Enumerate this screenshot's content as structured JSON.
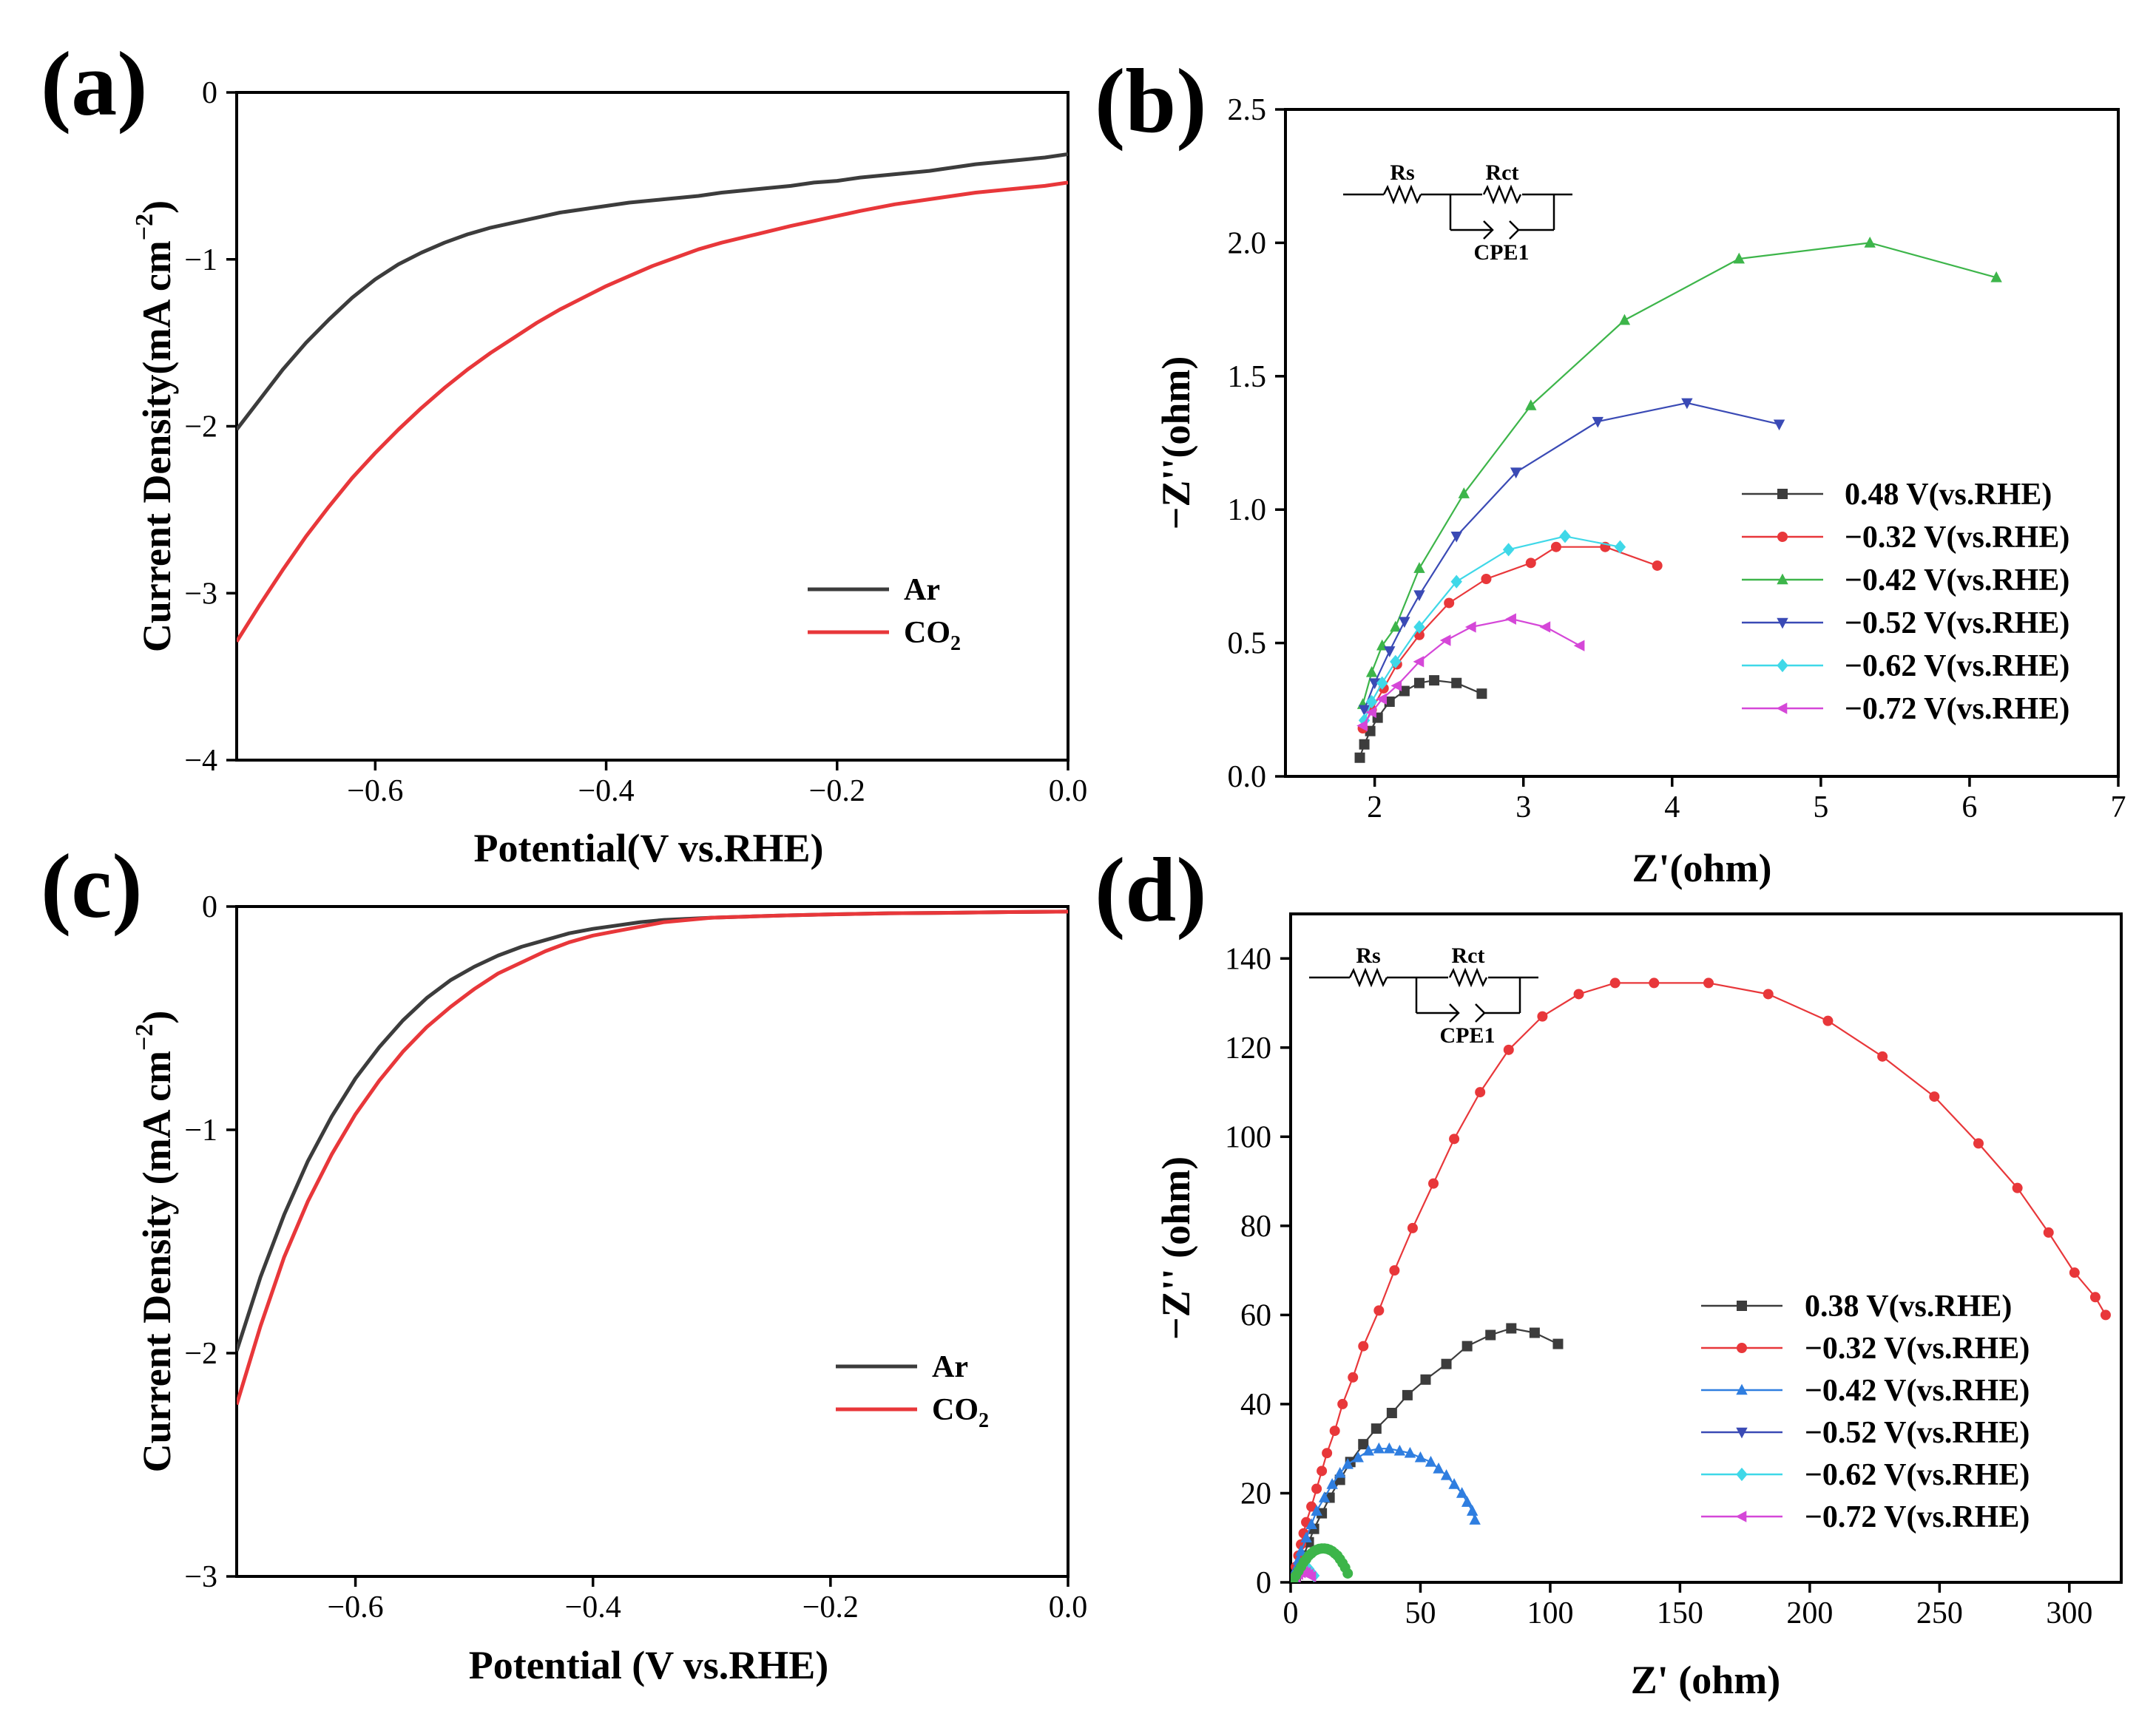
{
  "figure": {
    "panels": [
      {
        "letter": "(a)"
      },
      {
        "letter": "(b)"
      },
      {
        "letter": "(c)"
      },
      {
        "letter": "(d)"
      }
    ]
  },
  "chart_data": [
    {
      "panel": "(a)",
      "type": "line",
      "xlabel": "Potential(V vs.RHE)",
      "ylabel": "Current Density(mA cm",
      "ylabel_sup": "−2",
      "ylabel_close": ")",
      "xlim": [
        -0.72,
        0.0
      ],
      "ylim": [
        -4,
        0
      ],
      "xticks": [
        -0.6,
        -0.4,
        -0.2,
        0.0
      ],
      "xtick_labels": [
        "−0.6",
        "−0.4",
        "−0.2",
        "0.0"
      ],
      "yticks": [
        0,
        -1,
        -2,
        -3,
        -4
      ],
      "ytick_labels": [
        "0",
        "−1",
        "−2",
        "−3",
        "−4"
      ],
      "legend_position": "lower-right",
      "series": [
        {
          "name": "Ar",
          "sub": "",
          "color": "#3c3c3c",
          "marker": "none",
          "x": [
            -0.72,
            -0.7,
            -0.68,
            -0.66,
            -0.64,
            -0.62,
            -0.6,
            -0.58,
            -0.56,
            -0.54,
            -0.52,
            -0.5,
            -0.48,
            -0.46,
            -0.44,
            -0.42,
            -0.4,
            -0.38,
            -0.35,
            -0.32,
            -0.3,
            -0.27,
            -0.24,
            -0.22,
            -0.2,
            -0.18,
            -0.15,
            -0.12,
            -0.1,
            -0.08,
            -0.05,
            -0.02,
            0.0
          ],
          "y": [
            -2.02,
            -1.84,
            -1.66,
            -1.5,
            -1.36,
            -1.23,
            -1.12,
            -1.03,
            -0.96,
            -0.9,
            -0.85,
            -0.81,
            -0.78,
            -0.75,
            -0.72,
            -0.7,
            -0.68,
            -0.66,
            -0.64,
            -0.62,
            -0.6,
            -0.58,
            -0.56,
            -0.54,
            -0.53,
            -0.51,
            -0.49,
            -0.47,
            -0.45,
            -0.43,
            -0.41,
            -0.39,
            -0.37
          ]
        },
        {
          "name": "CO",
          "sub": "2",
          "color": "#e8373a",
          "marker": "none",
          "x": [
            -0.72,
            -0.7,
            -0.68,
            -0.66,
            -0.64,
            -0.62,
            -0.6,
            -0.58,
            -0.56,
            -0.54,
            -0.52,
            -0.5,
            -0.48,
            -0.46,
            -0.44,
            -0.42,
            -0.4,
            -0.38,
            -0.36,
            -0.34,
            -0.32,
            -0.3,
            -0.27,
            -0.24,
            -0.22,
            -0.2,
            -0.18,
            -0.15,
            -0.12,
            -0.1,
            -0.08,
            -0.05,
            -0.02,
            0.0
          ],
          "y": [
            -3.29,
            -3.07,
            -2.86,
            -2.66,
            -2.48,
            -2.31,
            -2.16,
            -2.02,
            -1.89,
            -1.77,
            -1.66,
            -1.56,
            -1.47,
            -1.38,
            -1.3,
            -1.23,
            -1.16,
            -1.1,
            -1.04,
            -0.99,
            -0.94,
            -0.9,
            -0.85,
            -0.8,
            -0.77,
            -0.74,
            -0.71,
            -0.67,
            -0.64,
            -0.62,
            -0.6,
            -0.58,
            -0.56,
            -0.54
          ]
        }
      ]
    },
    {
      "panel": "(b)",
      "type": "line",
      "xlabel": "Z'(ohm)",
      "ylabel": "−Z''(ohm)",
      "xlim": [
        1.4,
        7
      ],
      "ylim": [
        0,
        2.5
      ],
      "xticks": [
        2,
        3,
        4,
        5,
        6,
        7
      ],
      "xtick_labels": [
        "2",
        "3",
        "4",
        "5",
        "6",
        "7"
      ],
      "yticks": [
        0.0,
        0.5,
        1.0,
        1.5,
        2.0,
        2.5
      ],
      "ytick_labels": [
        "0.0",
        "0.5",
        "1.0",
        "1.5",
        "2.0",
        "2.5"
      ],
      "legend_position": "lower-right",
      "circuit": {
        "rs": "Rs",
        "rct": "Rct",
        "cpe": "CPE1"
      },
      "series": [
        {
          "name": "0.48 V(vs.RHE)",
          "color": "#3c3c3c",
          "marker": "square",
          "x": [
            1.9,
            1.93,
            1.97,
            2.02,
            2.1,
            2.2,
            2.3,
            2.4,
            2.55,
            2.72
          ],
          "y": [
            0.07,
            0.12,
            0.17,
            0.22,
            0.28,
            0.32,
            0.35,
            0.36,
            0.35,
            0.31
          ]
        },
        {
          "name": "−0.32 V(vs.RHE)",
          "color": "#e8373a",
          "marker": "circle",
          "x": [
            1.92,
            1.98,
            2.06,
            2.15,
            2.3,
            2.5,
            2.75,
            3.05,
            3.22,
            3.55,
            3.9
          ],
          "y": [
            0.18,
            0.25,
            0.33,
            0.42,
            0.53,
            0.65,
            0.74,
            0.8,
            0.86,
            0.86,
            0.79
          ]
        },
        {
          "name": "−0.42 V(vs.RHE)",
          "color": "#3db54a",
          "marker": "triangle-up",
          "x": [
            1.92,
            1.98,
            2.05,
            2.14,
            2.3,
            2.6,
            3.05,
            3.68,
            4.45,
            5.33,
            6.18
          ],
          "y": [
            0.27,
            0.39,
            0.49,
            0.56,
            0.78,
            1.06,
            1.39,
            1.71,
            1.94,
            2.0,
            1.87
          ]
        },
        {
          "name": "−0.52 V(vs.RHE)",
          "color": "#3a4ab5",
          "marker": "triangle-down",
          "x": [
            1.93,
            2.0,
            2.1,
            2.2,
            2.3,
            2.55,
            2.95,
            3.5,
            4.1,
            4.72
          ],
          "y": [
            0.25,
            0.35,
            0.47,
            0.58,
            0.68,
            0.9,
            1.14,
            1.33,
            1.4,
            1.32
          ]
        },
        {
          "name": "−0.62 V(vs.RHE)",
          "color": "#3fd8e8",
          "marker": "diamond",
          "x": [
            1.93,
            1.98,
            2.05,
            2.14,
            2.3,
            2.55,
            2.9,
            3.28,
            3.65
          ],
          "y": [
            0.21,
            0.28,
            0.35,
            0.43,
            0.56,
            0.73,
            0.85,
            0.9,
            0.86
          ]
        },
        {
          "name": "−0.72 V(vs.RHE)",
          "color": "#d547d8",
          "marker": "triangle-left",
          "x": [
            1.92,
            1.98,
            2.05,
            2.15,
            2.3,
            2.48,
            2.65,
            2.92,
            3.15,
            3.38
          ],
          "y": [
            0.19,
            0.24,
            0.29,
            0.34,
            0.43,
            0.51,
            0.56,
            0.59,
            0.56,
            0.49
          ]
        }
      ]
    },
    {
      "panel": "(c)",
      "type": "line",
      "xlabel": "Potential (V vs.RHE)",
      "ylabel": "Current Density (mA cm",
      "ylabel_sup": "−2",
      "ylabel_close": ")",
      "xlim": [
        -0.7,
        0.0
      ],
      "ylim": [
        -3,
        0
      ],
      "xticks": [
        -0.6,
        -0.4,
        -0.2,
        0.0
      ],
      "xtick_labels": [
        "−0.6",
        "−0.4",
        "−0.2",
        "0.0"
      ],
      "yticks": [
        0,
        -1,
        -2,
        -3
      ],
      "ytick_labels": [
        "0",
        "−1",
        "−2",
        "−3"
      ],
      "legend_position": "lower-right",
      "series": [
        {
          "name": "Ar",
          "sub": "",
          "color": "#3c3c3c",
          "marker": "none",
          "x": [
            -0.7,
            -0.68,
            -0.66,
            -0.64,
            -0.62,
            -0.6,
            -0.58,
            -0.56,
            -0.54,
            -0.52,
            -0.5,
            -0.48,
            -0.46,
            -0.44,
            -0.42,
            -0.4,
            -0.38,
            -0.36,
            -0.34,
            -0.32,
            -0.3,
            -0.27,
            -0.24,
            -0.2,
            -0.15,
            -0.1,
            -0.05,
            0.0
          ],
          "y": [
            -1.99,
            -1.66,
            -1.38,
            -1.14,
            -0.94,
            -0.77,
            -0.63,
            -0.51,
            -0.41,
            -0.33,
            -0.27,
            -0.22,
            -0.18,
            -0.15,
            -0.12,
            -0.1,
            -0.085,
            -0.07,
            -0.06,
            -0.055,
            -0.05,
            -0.045,
            -0.04,
            -0.035,
            -0.03,
            -0.028,
            -0.025,
            -0.023
          ]
        },
        {
          "name": "CO",
          "sub": "2",
          "color": "#e8373a",
          "marker": "none",
          "x": [
            -0.7,
            -0.68,
            -0.66,
            -0.64,
            -0.62,
            -0.6,
            -0.58,
            -0.56,
            -0.54,
            -0.52,
            -0.5,
            -0.48,
            -0.46,
            -0.44,
            -0.42,
            -0.4,
            -0.38,
            -0.36,
            -0.34,
            -0.32,
            -0.3,
            -0.27,
            -0.24,
            -0.2,
            -0.15,
            -0.1,
            -0.05,
            0.0
          ],
          "y": [
            -2.23,
            -1.88,
            -1.57,
            -1.32,
            -1.11,
            -0.93,
            -0.78,
            -0.65,
            -0.54,
            -0.45,
            -0.37,
            -0.3,
            -0.25,
            -0.2,
            -0.16,
            -0.13,
            -0.11,
            -0.09,
            -0.07,
            -0.06,
            -0.05,
            -0.045,
            -0.04,
            -0.035,
            -0.03,
            -0.028,
            -0.025,
            -0.023
          ]
        }
      ]
    },
    {
      "panel": "(d)",
      "type": "line",
      "xlabel": "Z' (ohm)",
      "ylabel": "−Z'' (ohm)",
      "xlim": [
        0,
        320
      ],
      "ylim": [
        0,
        150
      ],
      "xticks": [
        0,
        50,
        100,
        150,
        200,
        250,
        300
      ],
      "xtick_labels": [
        "0",
        "50",
        "100",
        "150",
        "200",
        "250",
        "300"
      ],
      "yticks": [
        0,
        20,
        40,
        60,
        80,
        100,
        120,
        140
      ],
      "ytick_labels": [
        "0",
        "20",
        "40",
        "60",
        "80",
        "100",
        "120",
        "140"
      ],
      "legend_position": "lower-right",
      "circuit": {
        "rs": "Rs",
        "rct": "Rct",
        "cpe": "CPE1"
      },
      "series": [
        {
          "name": "0.38 V(vs.RHE)",
          "color": "#3c3c3c",
          "marker": "square",
          "x": [
            2,
            3,
            5,
            7,
            9,
            12,
            15,
            19,
            23,
            28,
            33,
            39,
            45,
            52,
            60,
            68,
            77,
            85,
            94,
            103
          ],
          "y": [
            1,
            3,
            6,
            9,
            12,
            15.5,
            19,
            23,
            27,
            31,
            34.5,
            38,
            42,
            45.5,
            49,
            53,
            55.5,
            57,
            56,
            53.5
          ]
        },
        {
          "name": "−0.32 V(vs.RHE)",
          "color": "#e8373a",
          "marker": "circle",
          "x": [
            1,
            2,
            3,
            4,
            5,
            6,
            8,
            10,
            12,
            14,
            17,
            20,
            24,
            28,
            34,
            40,
            47,
            55,
            63,
            73,
            84,
            97,
            111,
            125,
            140,
            161,
            184,
            207,
            228,
            248,
            265,
            280,
            292,
            302,
            310,
            314
          ],
          "y": [
            1,
            3.5,
            6,
            8.5,
            11,
            13.5,
            17,
            21,
            25,
            29,
            34,
            40,
            46,
            53,
            61,
            70,
            79.5,
            89.5,
            99.5,
            110,
            119.5,
            127,
            132,
            134.5,
            134.5,
            134.5,
            132,
            126,
            118,
            109,
            98.5,
            88.5,
            78.5,
            69.5,
            64,
            60
          ]
        },
        {
          "name": "−0.42 V(vs.RHE)",
          "color": "#2f7ee0",
          "marker": "triangle-up",
          "x": [
            1,
            2,
            3,
            4,
            6,
            8,
            10,
            13,
            16,
            19,
            22,
            26,
            30,
            34,
            38,
            42,
            46,
            50,
            54,
            57,
            60,
            63,
            66,
            68,
            70,
            71
          ],
          "y": [
            1,
            3,
            5,
            7,
            10,
            13,
            16,
            19,
            22,
            24.5,
            26.5,
            28,
            29.5,
            30,
            30,
            29.5,
            29,
            28,
            27,
            25.5,
            24,
            22,
            20,
            18,
            16,
            14
          ]
        },
        {
          "name": "−0.52 V(vs.RHE)",
          "color": "#3a4ab5",
          "marker": "triangle-down",
          "x": [
            1,
            2,
            3,
            4,
            5
          ],
          "y": [
            0.5,
            1.2,
            2,
            2.6,
            3
          ]
        },
        {
          "name": "−0.62 V(vs.RHE)",
          "color": "#3fd8e8",
          "marker": "diamond",
          "x": [
            1,
            2,
            3,
            4,
            5,
            6,
            7,
            8,
            9
          ],
          "y": [
            0.5,
            1.5,
            2.5,
            3.2,
            3.6,
            3.5,
            3,
            2.2,
            1.5
          ]
        },
        {
          "name": "−0.72 V(vs.RHE)",
          "color": "#d547d8",
          "marker": "triangle-left",
          "x": [
            1,
            2,
            3,
            4,
            5,
            6,
            7,
            8
          ],
          "y": [
            0.5,
            1.2,
            1.8,
            2.2,
            2.4,
            2.2,
            1.8,
            1.3
          ]
        },
        {
          "name": "",
          "color": "#3db54a",
          "marker": "circle",
          "x": [
            1,
            2,
            3,
            4,
            5,
            6,
            7,
            8,
            9,
            10,
            11,
            12,
            13,
            14,
            15,
            16,
            17,
            18,
            19,
            20,
            21,
            22
          ],
          "y": [
            0.5,
            1.5,
            2.5,
            3.5,
            4.5,
            5.2,
            6,
            6.5,
            7,
            7.3,
            7.5,
            7.6,
            7.6,
            7.5,
            7.3,
            7,
            6.5,
            6,
            5.2,
            4.3,
            3.3,
            2
          ]
        }
      ]
    }
  ]
}
